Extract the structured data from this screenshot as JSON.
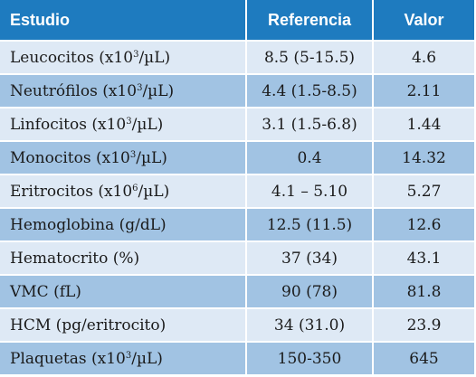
{
  "table": {
    "headers": {
      "study": "Estudio",
      "reference": "Referencia",
      "value": "Valor"
    },
    "rows": [
      {
        "study": "Leucocitos (x10",
        "sup": "3",
        "study_tail": "/µL)",
        "reference": "8.5 (5-15.5)",
        "value": "4.6"
      },
      {
        "study": "Neutrófilos (x10",
        "sup": "3",
        "study_tail": "/µL)",
        "reference": "4.4 (1.5-8.5)",
        "value": "2.11"
      },
      {
        "study": "Linfocitos (x10",
        "sup": "3",
        "study_tail": "/µL)",
        "reference": "3.1 (1.5-6.8)",
        "value": "1.44"
      },
      {
        "study": "Monocitos (x10",
        "sup": "3",
        "study_tail": "/µL)",
        "reference": "0.4",
        "value": "14.32"
      },
      {
        "study": "Eritrocitos (x10",
        "sup": "6",
        "study_tail": "/µL)",
        "reference": "4.1 – 5.10",
        "value": "5.27"
      },
      {
        "study": "Hemoglobina (g/dL)",
        "sup": "",
        "study_tail": "",
        "reference": "12.5 (11.5)",
        "value": "12.6"
      },
      {
        "study": "Hematocrito (%)",
        "sup": "",
        "study_tail": "",
        "reference": "37 (34)",
        "value": "43.1"
      },
      {
        "study": "VMC (fL)",
        "sup": "",
        "study_tail": "",
        "reference": "90 (78)",
        "value": "81.8"
      },
      {
        "study": "HCM (pg/eritrocito)",
        "sup": "",
        "study_tail": "",
        "reference": "34 (31.0)",
        "value": "23.9"
      },
      {
        "study": "Plaquetas (x10",
        "sup": "3",
        "study_tail": "/µL)",
        "reference": "150-350",
        "value": "645"
      }
    ]
  },
  "colors": {
    "header_bg": "#1e7bbf",
    "row_light": "#dee9f5",
    "row_dark": "#a1c3e3"
  }
}
